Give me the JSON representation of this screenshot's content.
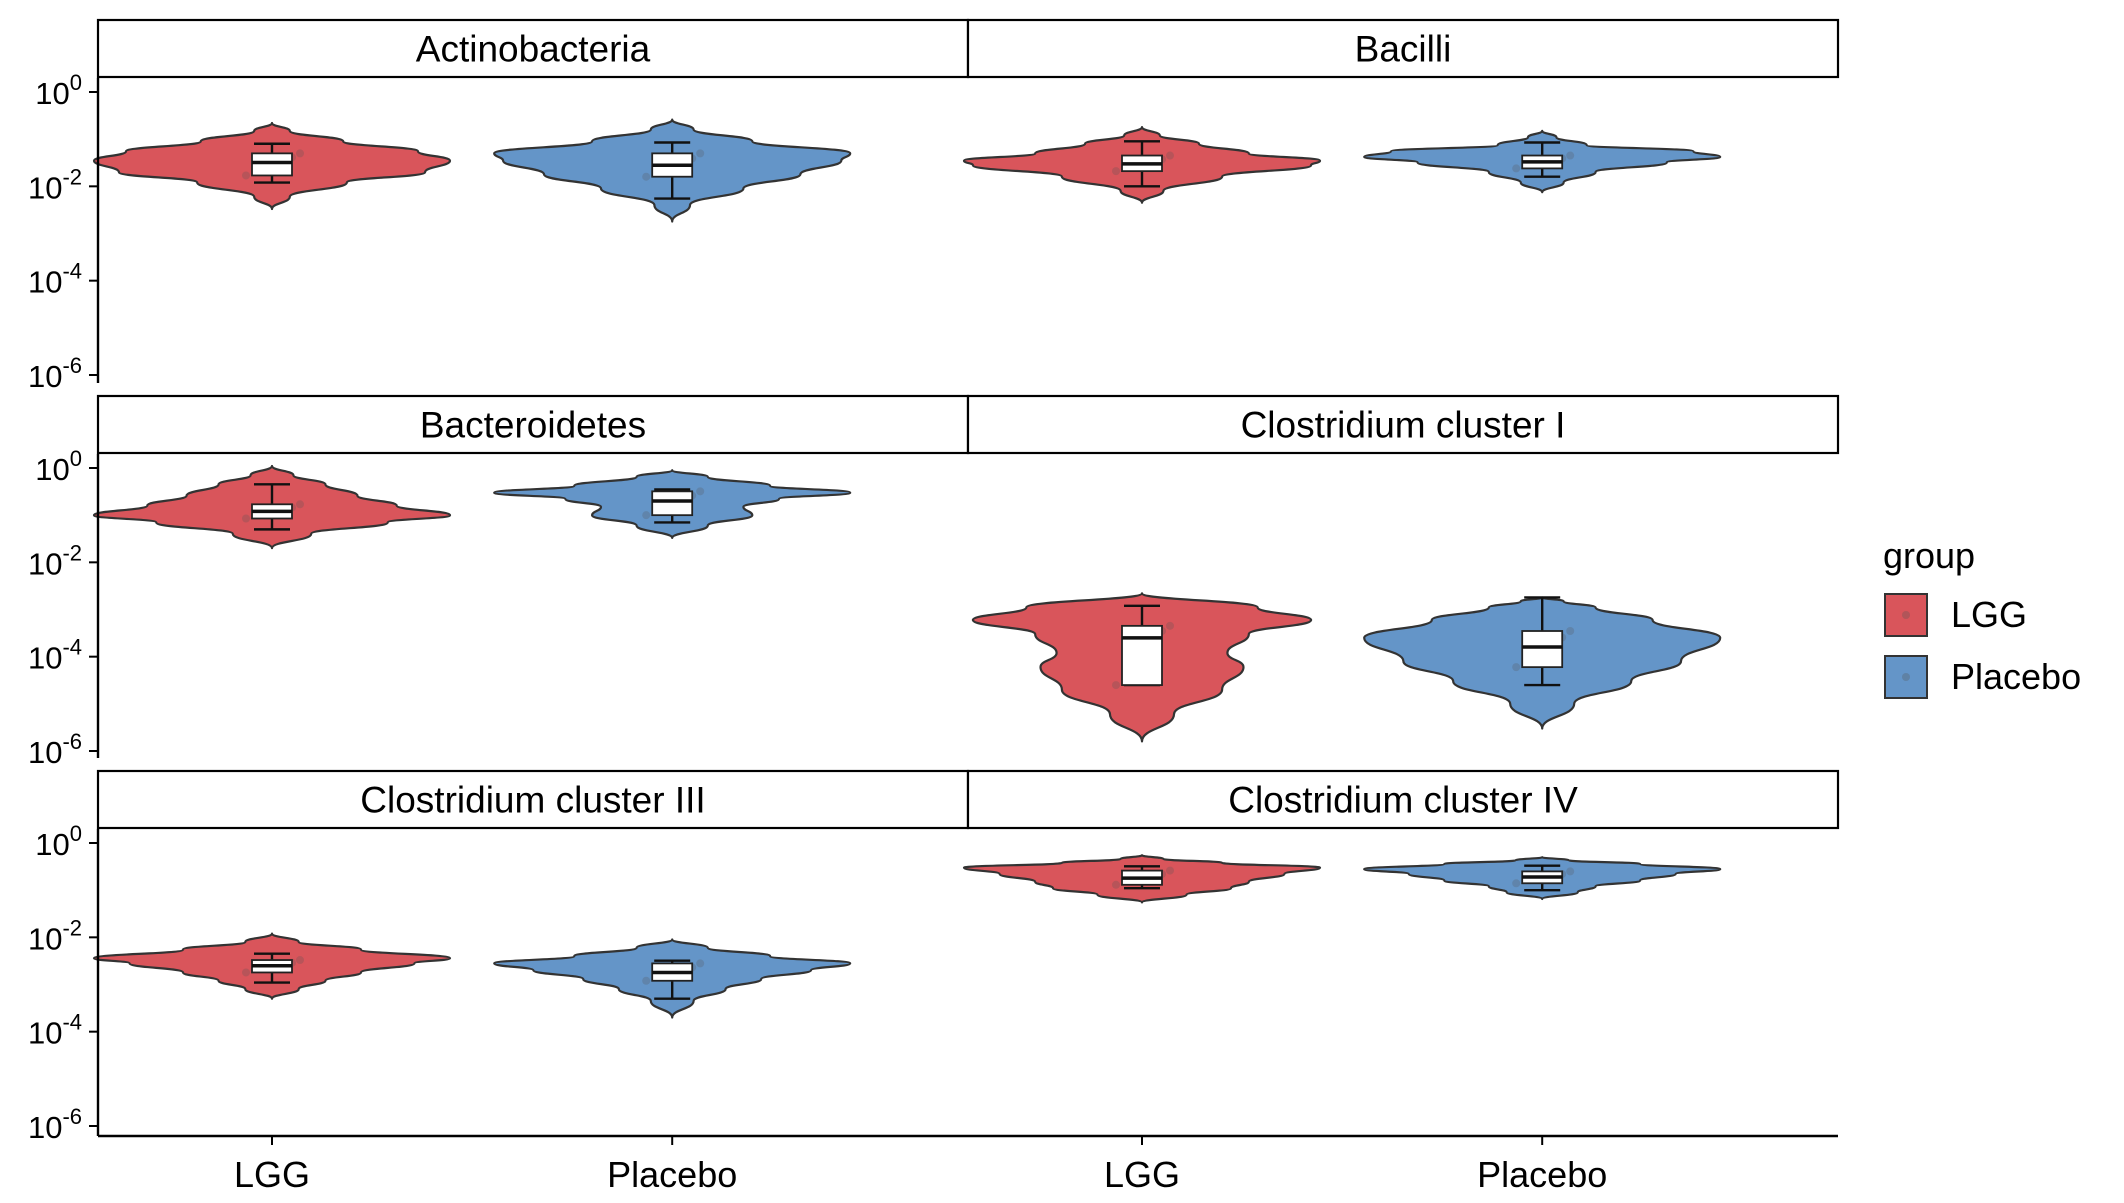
{
  "chart_data": {
    "type": "violin",
    "y_scale": "log10",
    "ylim": [
      1e-06,
      1
    ],
    "y_ticks": [
      {
        "value": 1e-06,
        "base": "10",
        "exp": "-6"
      },
      {
        "value": 0.0001,
        "base": "10",
        "exp": "-4"
      },
      {
        "value": 0.01,
        "base": "10",
        "exp": "-2"
      },
      {
        "value": 1,
        "base": "10",
        "exp": "0"
      }
    ],
    "categories": [
      "LGG",
      "Placebo"
    ],
    "legend": {
      "title": "group",
      "position": "right",
      "items": [
        {
          "label": "LGG",
          "color": "#d9555b"
        },
        {
          "label": "Placebo",
          "color": "#6495c8"
        }
      ]
    },
    "panels": [
      {
        "title": "Actinobacteria",
        "groups": [
          {
            "name": "LGG",
            "min": 0.0033,
            "max": 0.22,
            "box": {
              "lower_whisker": 0.012,
              "q1": 0.017,
              "median": 0.032,
              "q3": 0.05,
              "upper_whisker": 0.08
            },
            "density": [
              [
                0.0033,
                0
              ],
              [
                0.006,
                0.1
              ],
              [
                0.012,
                0.42
              ],
              [
                0.02,
                0.86
              ],
              [
                0.035,
                1
              ],
              [
                0.055,
                0.82
              ],
              [
                0.09,
                0.4
              ],
              [
                0.15,
                0.1
              ],
              [
                0.22,
                0
              ]
            ]
          },
          {
            "name": "Placebo",
            "min": 0.0018,
            "max": 0.26,
            "box": {
              "lower_whisker": 0.0055,
              "q1": 0.016,
              "median": 0.028,
              "q3": 0.05,
              "upper_whisker": 0.085
            },
            "density": [
              [
                0.0018,
                0
              ],
              [
                0.004,
                0.1
              ],
              [
                0.009,
                0.4
              ],
              [
                0.018,
                0.72
              ],
              [
                0.035,
                0.95
              ],
              [
                0.05,
                1
              ],
              [
                0.09,
                0.45
              ],
              [
                0.16,
                0.12
              ],
              [
                0.26,
                0
              ]
            ]
          }
        ]
      },
      {
        "title": "Bacilli",
        "groups": [
          {
            "name": "LGG",
            "min": 0.0045,
            "max": 0.18,
            "box": {
              "lower_whisker": 0.01,
              "q1": 0.021,
              "median": 0.03,
              "q3": 0.045,
              "upper_whisker": 0.09
            },
            "density": [
              [
                0.0045,
                0
              ],
              [
                0.008,
                0.12
              ],
              [
                0.016,
                0.45
              ],
              [
                0.028,
                0.95
              ],
              [
                0.035,
                1
              ],
              [
                0.05,
                0.6
              ],
              [
                0.08,
                0.32
              ],
              [
                0.12,
                0.1
              ],
              [
                0.18,
                0
              ]
            ]
          },
          {
            "name": "Placebo",
            "min": 0.0075,
            "max": 0.15,
            "box": {
              "lower_whisker": 0.016,
              "q1": 0.024,
              "median": 0.033,
              "q3": 0.045,
              "upper_whisker": 0.085
            },
            "density": [
              [
                0.0075,
                0
              ],
              [
                0.012,
                0.12
              ],
              [
                0.02,
                0.3
              ],
              [
                0.032,
                0.7
              ],
              [
                0.042,
                1
              ],
              [
                0.055,
                0.85
              ],
              [
                0.075,
                0.25
              ],
              [
                0.11,
                0.08
              ],
              [
                0.15,
                0
              ]
            ]
          }
        ]
      },
      {
        "title": "Bacteroidetes",
        "groups": [
          {
            "name": "LGG",
            "min": 0.02,
            "max": 1.1,
            "box": {
              "lower_whisker": 0.05,
              "q1": 0.085,
              "median": 0.12,
              "q3": 0.17,
              "upper_whisker": 0.45
            },
            "density": [
              [
                0.02,
                0
              ],
              [
                0.04,
                0.22
              ],
              [
                0.07,
                0.65
              ],
              [
                0.1,
                1
              ],
              [
                0.16,
                0.7
              ],
              [
                0.26,
                0.48
              ],
              [
                0.45,
                0.3
              ],
              [
                0.7,
                0.12
              ],
              [
                1.1,
                0
              ]
            ]
          },
          {
            "name": "Placebo",
            "min": 0.033,
            "max": 0.9,
            "box": {
              "lower_whisker": 0.07,
              "q1": 0.1,
              "median": 0.2,
              "q3": 0.32,
              "upper_whisker": 0.35
            },
            "density": [
              [
                0.033,
                0
              ],
              [
                0.06,
                0.2
              ],
              [
                0.1,
                0.45
              ],
              [
                0.15,
                0.4
              ],
              [
                0.22,
                0.6
              ],
              [
                0.3,
                1
              ],
              [
                0.42,
                0.55
              ],
              [
                0.65,
                0.2
              ],
              [
                0.9,
                0
              ]
            ]
          }
        ]
      },
      {
        "title": "Clostridium cluster I",
        "groups": [
          {
            "name": "LGG",
            "min": 1.6e-06,
            "max": 0.0022,
            "box": {
              "lower_whisker": 2.5e-05,
              "q1": 2.5e-05,
              "median": 0.00025,
              "q3": 0.00045,
              "upper_whisker": 0.0012
            },
            "density": [
              [
                1.6e-06,
                0
              ],
              [
                6e-06,
                0.18
              ],
              [
                2e-05,
                0.45
              ],
              [
                6e-05,
                0.57
              ],
              [
                0.00012,
                0.48
              ],
              [
                0.0003,
                0.6
              ],
              [
                0.0006,
                0.95
              ],
              [
                0.0011,
                0.65
              ],
              [
                0.0022,
                0
              ]
            ]
          },
          {
            "name": "Placebo",
            "min": 3e-06,
            "max": 0.0018,
            "box": {
              "lower_whisker": 2.5e-05,
              "q1": 6e-05,
              "median": 0.00016,
              "q3": 0.00035,
              "upper_whisker": 0.0018
            },
            "density": [
              [
                3e-06,
                0
              ],
              [
                1e-05,
                0.18
              ],
              [
                3e-05,
                0.5
              ],
              [
                8e-05,
                0.78
              ],
              [
                0.00025,
                1
              ],
              [
                0.0006,
                0.62
              ],
              [
                0.0011,
                0.3
              ],
              [
                0.0015,
                0.12
              ],
              [
                0.0018,
                0
              ]
            ]
          }
        ]
      },
      {
        "title": "Clostridium cluster III",
        "groups": [
          {
            "name": "LGG",
            "min": 0.0005,
            "max": 0.012,
            "box": {
              "lower_whisker": 0.0011,
              "q1": 0.0018,
              "median": 0.0025,
              "q3": 0.0033,
              "upper_whisker": 0.0045
            },
            "density": [
              [
                0.0005,
                0
              ],
              [
                0.0008,
                0.15
              ],
              [
                0.0012,
                0.3
              ],
              [
                0.0018,
                0.5
              ],
              [
                0.0028,
                0.8
              ],
              [
                0.0036,
                1
              ],
              [
                0.0055,
                0.5
              ],
              [
                0.008,
                0.15
              ],
              [
                0.012,
                0
              ]
            ]
          },
          {
            "name": "Placebo",
            "min": 0.0002,
            "max": 0.009,
            "box": {
              "lower_whisker": 0.0005,
              "q1": 0.0012,
              "median": 0.0018,
              "q3": 0.0028,
              "upper_whisker": 0.0032
            },
            "density": [
              [
                0.0002,
                0
              ],
              [
                0.00045,
                0.12
              ],
              [
                0.0008,
                0.3
              ],
              [
                0.0013,
                0.5
              ],
              [
                0.002,
                0.78
              ],
              [
                0.0028,
                1
              ],
              [
                0.004,
                0.55
              ],
              [
                0.006,
                0.2
              ],
              [
                0.009,
                0
              ]
            ]
          }
        ]
      },
      {
        "title": "Clostridium cluster IV",
        "groups": [
          {
            "name": "LGG",
            "min": 0.055,
            "max": 0.55,
            "box": {
              "lower_whisker": 0.11,
              "q1": 0.13,
              "median": 0.18,
              "q3": 0.26,
              "upper_whisker": 0.32
            },
            "density": [
              [
                0.055,
                0
              ],
              [
                0.08,
                0.25
              ],
              [
                0.11,
                0.5
              ],
              [
                0.15,
                0.6
              ],
              [
                0.22,
                0.8
              ],
              [
                0.3,
                1
              ],
              [
                0.38,
                0.45
              ],
              [
                0.46,
                0.12
              ],
              [
                0.55,
                0
              ]
            ]
          },
          {
            "name": "Placebo",
            "min": 0.065,
            "max": 0.5,
            "box": {
              "lower_whisker": 0.1,
              "q1": 0.14,
              "median": 0.19,
              "q3": 0.25,
              "upper_whisker": 0.33
            },
            "density": [
              [
                0.065,
                0
              ],
              [
                0.09,
                0.2
              ],
              [
                0.12,
                0.3
              ],
              [
                0.16,
                0.55
              ],
              [
                0.22,
                0.75
              ],
              [
                0.28,
                1
              ],
              [
                0.36,
                0.55
              ],
              [
                0.43,
                0.15
              ],
              [
                0.5,
                0
              ]
            ]
          }
        ]
      }
    ]
  }
}
